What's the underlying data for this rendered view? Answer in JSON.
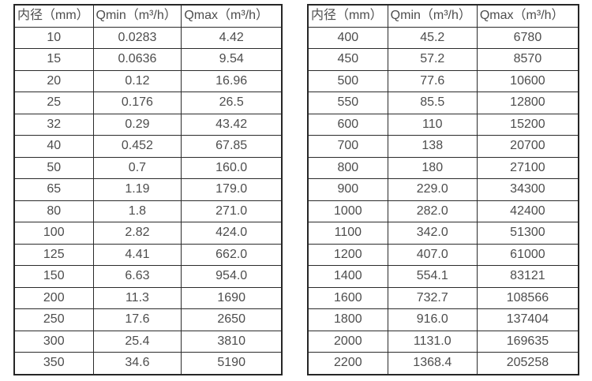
{
  "colors": {
    "background": "#ffffff",
    "border": "#2b2b2b",
    "text": "#4d4d4d"
  },
  "tables": [
    {
      "name": "flow-rate-table-small-diameters",
      "headers": [
        "内径（mm）",
        "Qmin（m³/h）",
        "Qmax（m³/h）"
      ],
      "rows": [
        [
          "10",
          "0.0283",
          "4.42"
        ],
        [
          "15",
          "0.0636",
          "9.54"
        ],
        [
          "20",
          "0.12",
          "16.96"
        ],
        [
          "25",
          "0.176",
          "26.5"
        ],
        [
          "32",
          "0.29",
          "43.42"
        ],
        [
          "40",
          "0.452",
          "67.85"
        ],
        [
          "50",
          "0.7",
          "160.0"
        ],
        [
          "65",
          "1.19",
          "179.0"
        ],
        [
          "80",
          "1.8",
          "271.0"
        ],
        [
          "100",
          "2.82",
          "424.0"
        ],
        [
          "125",
          "4.41",
          "662.0"
        ],
        [
          "150",
          "6.63",
          "954.0"
        ],
        [
          "200",
          "11.3",
          "1690"
        ],
        [
          "250",
          "17.6",
          "2650"
        ],
        [
          "300",
          "25.4",
          "3810"
        ],
        [
          "350",
          "34.6",
          "5190"
        ]
      ]
    },
    {
      "name": "flow-rate-table-large-diameters",
      "headers": [
        "内径（mm）",
        "Qmin（m³/h）",
        "Qmax（m³/h）"
      ],
      "rows": [
        [
          "400",
          "45.2",
          "6780"
        ],
        [
          "450",
          "57.2",
          "8570"
        ],
        [
          "500",
          "77.6",
          "10600"
        ],
        [
          "550",
          "85.5",
          "12800"
        ],
        [
          "600",
          "110",
          "15200"
        ],
        [
          "700",
          "138",
          "20700"
        ],
        [
          "800",
          "180",
          "27100"
        ],
        [
          "900",
          "229.0",
          "34300"
        ],
        [
          "1000",
          "282.0",
          "42400"
        ],
        [
          "1100",
          "342.0",
          "51300"
        ],
        [
          "1200",
          "407.0",
          "61000"
        ],
        [
          "1400",
          "554.1",
          "83121"
        ],
        [
          "1600",
          "732.7",
          "108566"
        ],
        [
          "1800",
          "916.0",
          "137404"
        ],
        [
          "2000",
          "1131.0",
          "169635"
        ],
        [
          "2200",
          "1368.4",
          "205258"
        ]
      ]
    }
  ]
}
